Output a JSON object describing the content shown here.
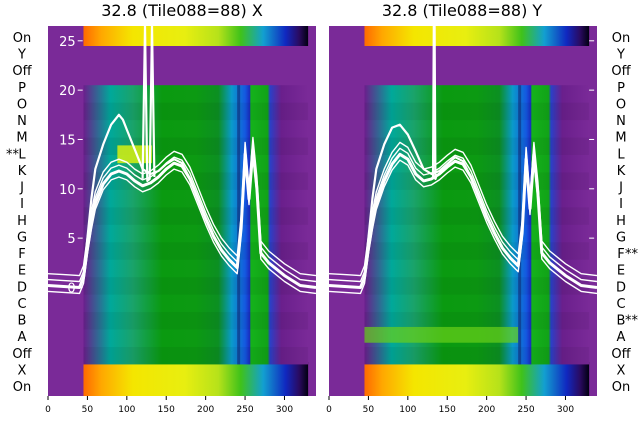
{
  "chart_data": [
    {
      "type": "heatmap",
      "title": "32.8 (Tile088=88) X",
      "x_ticks": [
        0,
        50,
        100,
        150,
        200,
        250,
        300
      ],
      "xlim": [
        0,
        340
      ],
      "y_ticks": [
        0,
        5,
        10,
        15,
        20,
        25
      ],
      "ylim": [
        -11,
        26.5
      ],
      "row_labels": [
        "On",
        "Y",
        "Off",
        "P",
        "O",
        "N",
        "M",
        "L",
        "K",
        "J",
        "I",
        "H",
        "G",
        "F",
        "E",
        "D",
        "C",
        "B",
        "A",
        "Off",
        "X",
        "On"
      ],
      "marked_rows": [
        "L"
      ],
      "row_markers": [
        "**"
      ],
      "series": [
        {
          "x": [
            0,
            20,
            40,
            45,
            50,
            55,
            60,
            70,
            80,
            90,
            100,
            110,
            120,
            130,
            140,
            150,
            160,
            170,
            180,
            190,
            200,
            210,
            220,
            230,
            240,
            245,
            250,
            255,
            260,
            265,
            270,
            280,
            300,
            320,
            340
          ],
          "y": [
            0.2,
            0.1,
            0.0,
            1.0,
            4.0,
            6.5,
            8.5,
            10.5,
            11.5,
            11.8,
            11.5,
            10.8,
            10.3,
            10.6,
            11.2,
            12.0,
            12.6,
            12.3,
            11.0,
            9.0,
            7.0,
            5.2,
            3.8,
            2.8,
            2.0,
            6.0,
            13.5,
            9.0,
            14.0,
            10.0,
            3.5,
            2.5,
            1.2,
            0.2,
            0.0
          ]
        },
        {
          "x": [
            45,
            50,
            55,
            60,
            70,
            80,
            90,
            95,
            100,
            110,
            120,
            130,
            140,
            150,
            160,
            170,
            180,
            190
          ],
          "y": [
            1.0,
            5.0,
            9.0,
            12.0,
            14.5,
            16.5,
            17.5,
            17.0,
            16.0,
            14.0,
            12.0,
            11.5,
            11.8,
            12.5,
            13.0,
            12.6,
            11.0,
            9.0
          ]
        },
        {
          "x": [
            120,
            123,
            126,
            129,
            132,
            135
          ],
          "y": [
            11.0,
            26.5,
            10.8,
            11.0,
            26.5,
            11.2
          ]
        }
      ]
    },
    {
      "type": "heatmap",
      "title": "32.8 (Tile088=88) Y",
      "x_ticks": [
        0,
        50,
        100,
        150,
        200,
        250,
        300
      ],
      "xlim": [
        0,
        340
      ],
      "y_ticks": [
        0,
        5,
        10,
        15,
        20,
        25
      ],
      "ylim": [
        -11,
        26.5
      ],
      "row_labels": [
        "On",
        "Y",
        "Off",
        "P",
        "O",
        "N",
        "M",
        "L",
        "K",
        "J",
        "I",
        "H",
        "G",
        "F",
        "E",
        "D",
        "C",
        "B",
        "A",
        "Off",
        "X",
        "On"
      ],
      "marked_rows": [
        "F",
        "B"
      ],
      "row_markers": [
        "**",
        "**"
      ],
      "series": [
        {
          "x": [
            0,
            20,
            40,
            45,
            50,
            55,
            60,
            70,
            80,
            90,
            100,
            110,
            120,
            130,
            140,
            150,
            160,
            170,
            180,
            190,
            200,
            210,
            220,
            230,
            240,
            245,
            250,
            255,
            260,
            265,
            270,
            280,
            300,
            320,
            340
          ],
          "y": [
            0.2,
            0.1,
            0.0,
            1.0,
            4.0,
            6.5,
            8.5,
            10.8,
            12.5,
            13.5,
            13.0,
            11.5,
            10.8,
            11.0,
            11.5,
            12.2,
            12.8,
            12.5,
            11.2,
            9.2,
            7.2,
            5.5,
            4.0,
            3.0,
            2.2,
            5.5,
            13.0,
            8.0,
            13.5,
            9.5,
            3.5,
            2.5,
            1.2,
            0.2,
            0.0
          ]
        },
        {
          "x": [
            45,
            50,
            55,
            60,
            70,
            80,
            90,
            100,
            110,
            120,
            130,
            140,
            150,
            160,
            170,
            180,
            190
          ],
          "y": [
            1.0,
            5.0,
            9.0,
            12.0,
            14.5,
            16.2,
            16.5,
            15.5,
            13.8,
            12.0,
            11.5,
            11.8,
            12.5,
            13.2,
            12.8,
            11.2,
            9.2
          ]
        },
        {
          "x": [
            132,
            133,
            134,
            135,
            136
          ],
          "y": [
            11.0,
            26.5,
            26.5,
            11.0,
            11.2
          ]
        }
      ]
    }
  ]
}
